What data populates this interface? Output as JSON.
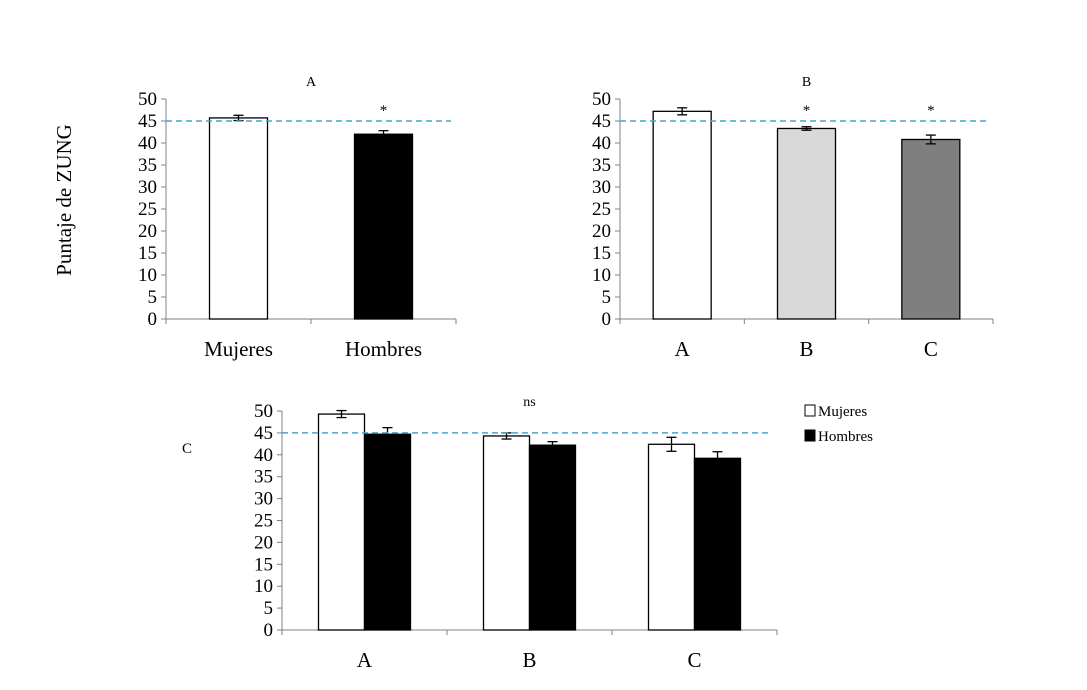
{
  "ylabel": "Puntaje de ZUNG",
  "reference_line": {
    "value": 45,
    "color": "#3fa7d6"
  },
  "legend": {
    "items": [
      {
        "label": "Mujeres",
        "color": "#ffffff"
      },
      {
        "label": "Hombres",
        "color": "#000000"
      }
    ]
  },
  "chart_data": [
    {
      "type": "bar",
      "title": "A",
      "categories": [
        "Mujeres",
        "Hombres"
      ],
      "values": [
        45.7,
        42.0
      ],
      "errors": [
        0.6,
        0.8
      ],
      "colors": [
        "#ffffff",
        "#000000"
      ],
      "significance": [
        "",
        "*"
      ],
      "ylim": [
        0,
        50
      ],
      "yticks": [
        "0",
        "5",
        "10",
        "15",
        "20",
        "25",
        "30",
        "35",
        "40",
        "45",
        "50"
      ],
      "ylabel": "Puntaje de ZUNG"
    },
    {
      "type": "bar",
      "title": "B",
      "categories": [
        "A",
        "B",
        "C"
      ],
      "values": [
        47.2,
        43.3,
        40.8
      ],
      "errors": [
        0.8,
        0.4,
        1.0
      ],
      "colors": [
        "#ffffff",
        "#d9d9d9",
        "#7f7f7f"
      ],
      "significance": [
        "",
        "*",
        "*"
      ],
      "ylim": [
        0,
        50
      ],
      "yticks": [
        "0",
        "5",
        "10",
        "15",
        "20",
        "25",
        "30",
        "35",
        "40",
        "45",
        "50"
      ]
    },
    {
      "type": "bar",
      "title": "ns",
      "panel_label": "C",
      "categories": [
        "A",
        "B",
        "C"
      ],
      "series": [
        {
          "name": "Mujeres",
          "color": "#ffffff",
          "values": [
            49.3,
            44.3,
            42.4
          ],
          "errors": [
            0.8,
            0.7,
            1.6
          ]
        },
        {
          "name": "Hombres",
          "color": "#000000",
          "values": [
            44.7,
            42.2,
            39.2
          ],
          "errors": [
            1.5,
            0.8,
            1.5
          ]
        }
      ],
      "ylim": [
        0,
        50
      ],
      "yticks": [
        "0",
        "5",
        "10",
        "15",
        "20",
        "25",
        "30",
        "35",
        "40",
        "45",
        "50"
      ]
    }
  ]
}
